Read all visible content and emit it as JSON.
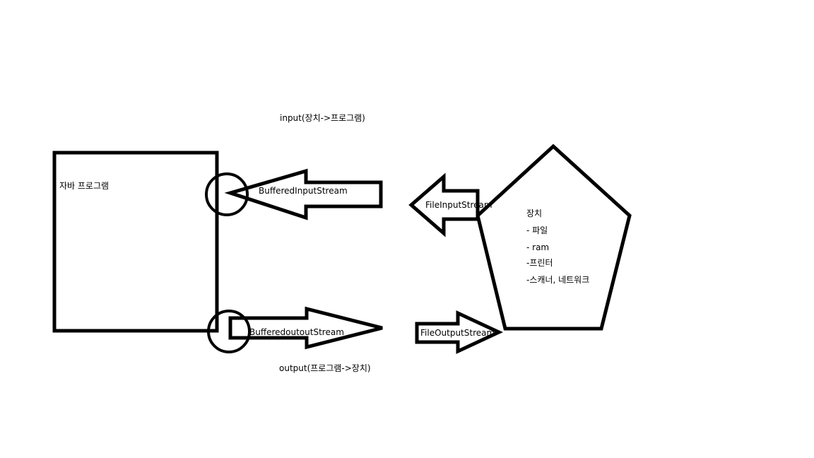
{
  "input_label": "input(장치->프로그램)",
  "output_label": "output(프로그램->장치)",
  "program": {
    "label": "자바 프로그램"
  },
  "streams": {
    "buffered_input": "BufferedInputStream",
    "file_input": "FileInputStream",
    "buffered_output": "BufferedoutoutStream",
    "file_output": "FileOutputStream"
  },
  "device": {
    "title": "장치",
    "items": [
      "- 파일",
      "-  ram",
      "-프린터",
      "-스캐너, 네트워크"
    ]
  }
}
